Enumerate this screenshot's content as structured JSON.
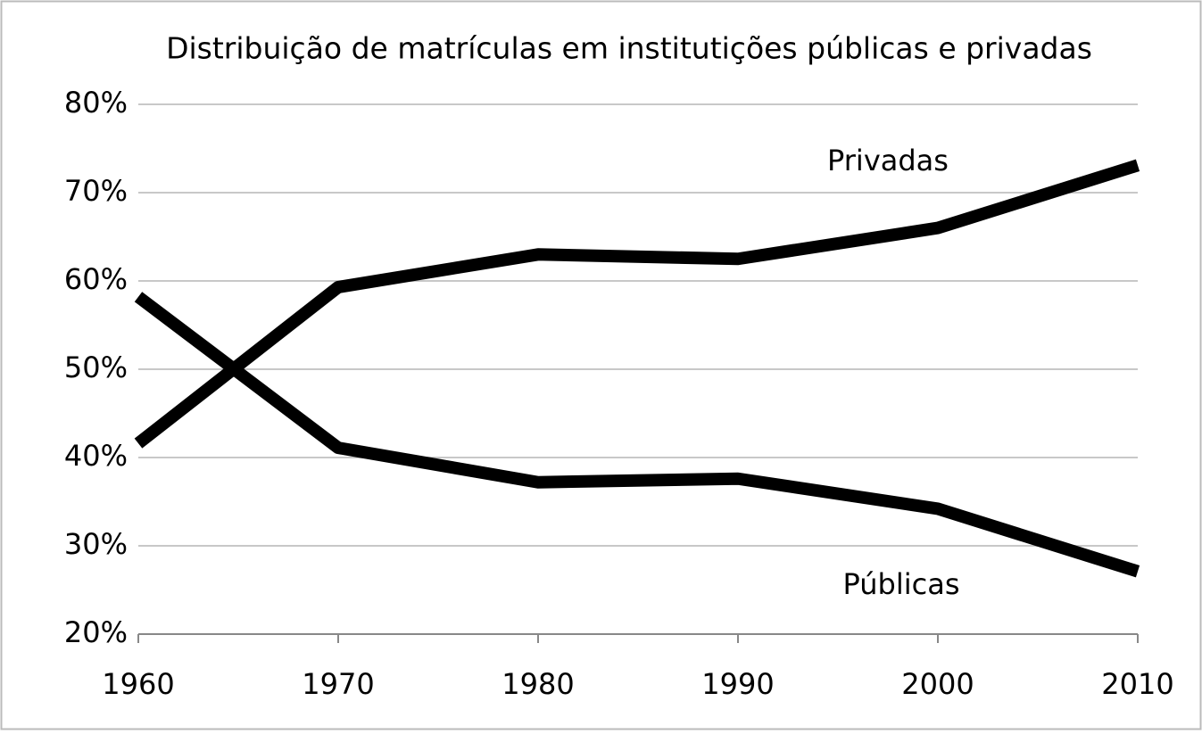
{
  "chart_data": {
    "type": "line",
    "title": "Distribuição de matrículas em institutições públicas e privadas",
    "x": [
      1960,
      1970,
      1980,
      1990,
      2000,
      2010
    ],
    "series": [
      {
        "name": "Privadas",
        "color": "#000000",
        "values": [
          41.6,
          59.3,
          63,
          62.5,
          66,
          73.1
        ]
      },
      {
        "name": "Públicas",
        "color": "#000000",
        "values": [
          58.2,
          41.1,
          37.2,
          37.6,
          34.2,
          27.1
        ]
      }
    ],
    "xlim": [
      1960,
      2010
    ],
    "xticks": [
      1960,
      1970,
      1980,
      1990,
      2000,
      2010
    ],
    "ylim": [
      20,
      80
    ],
    "yticks": [
      {
        "value": 20,
        "label": "20%"
      },
      {
        "value": 30,
        "label": "30%"
      },
      {
        "value": 40,
        "label": "40%"
      },
      {
        "value": 50,
        "label": "50%"
      },
      {
        "value": 60,
        "label": "60%"
      },
      {
        "value": 70,
        "label": "70%"
      },
      {
        "value": 80,
        "label": "80%"
      }
    ],
    "grid": true
  }
}
